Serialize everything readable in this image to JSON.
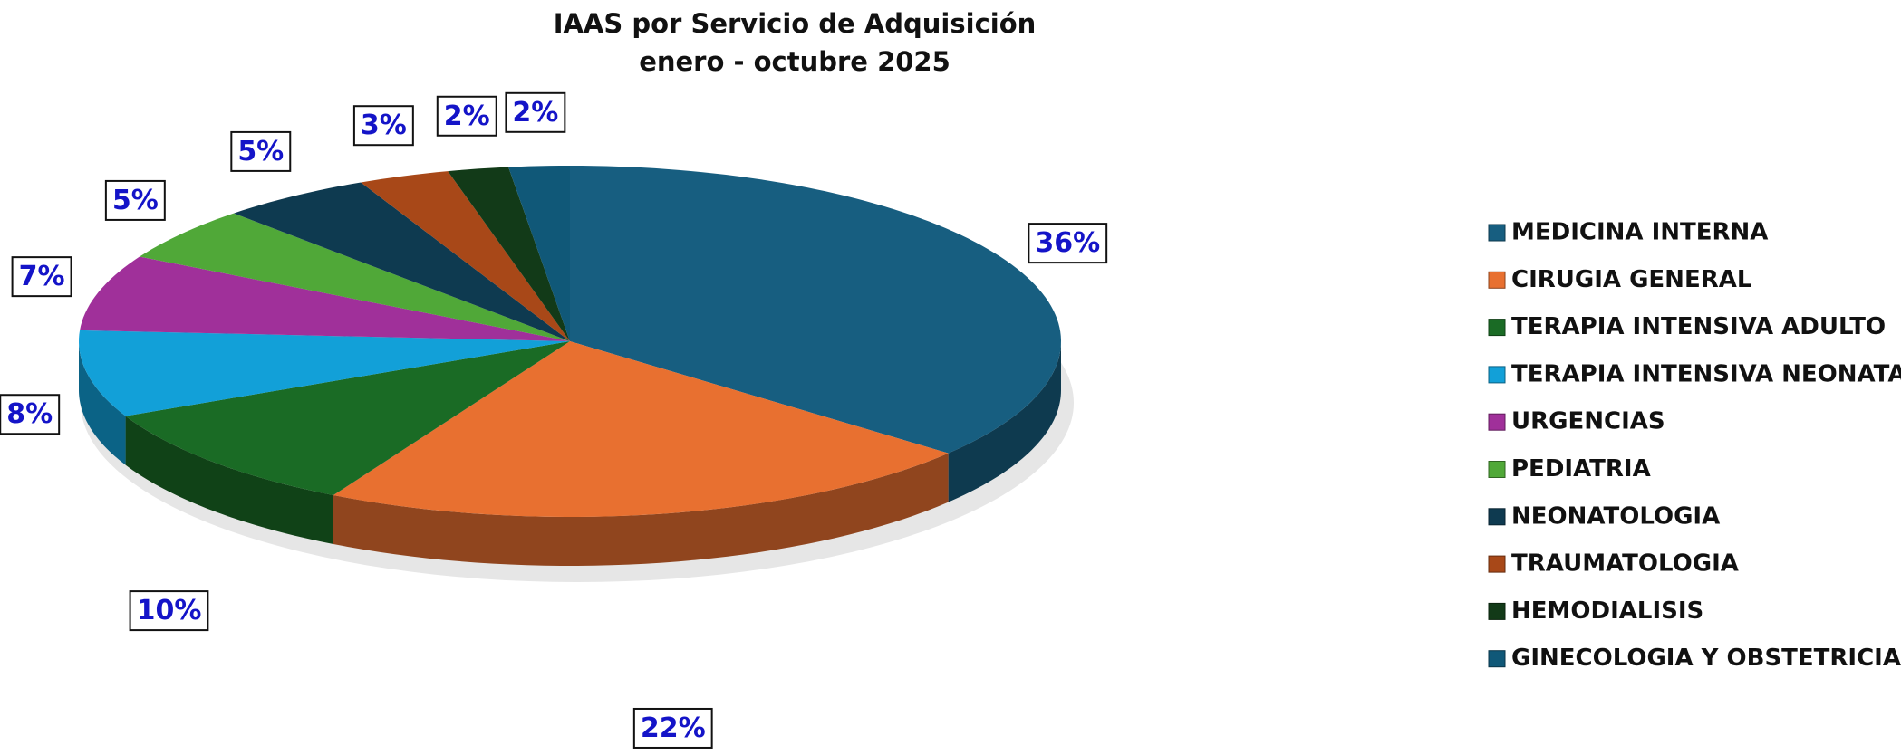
{
  "chart_data": {
    "type": "pie",
    "title": "IAAS por Servicio de Adquisición",
    "subtitle": "enero - octubre 2025",
    "categories": [
      "MEDICINA INTERNA",
      "CIRUGIA GENERAL",
      "TERAPIA INTENSIVA ADULTO",
      "TERAPIA INTENSIVA NEONATAL",
      "URGENCIAS",
      "PEDIATRIA",
      "NEONATOLOGIA",
      "TRAUMATOLOGIA",
      "HEMODIALISIS",
      "GINECOLOGIA Y OBSTETRICIA"
    ],
    "values": [
      36,
      22,
      10,
      8,
      7,
      5,
      5,
      3,
      2,
      2
    ],
    "value_labels": [
      "36%",
      "22%",
      "10%",
      "8%",
      "7%",
      "5%",
      "5%",
      "3%",
      "2%",
      "2%"
    ],
    "colors": [
      "#175e80",
      "#e87030",
      "#1a6b25",
      "#12a0d8",
      "#a0309a",
      "#50a838",
      "#0e3a50",
      "#a84818",
      "#123a18",
      "#105878"
    ],
    "legend": "right"
  }
}
